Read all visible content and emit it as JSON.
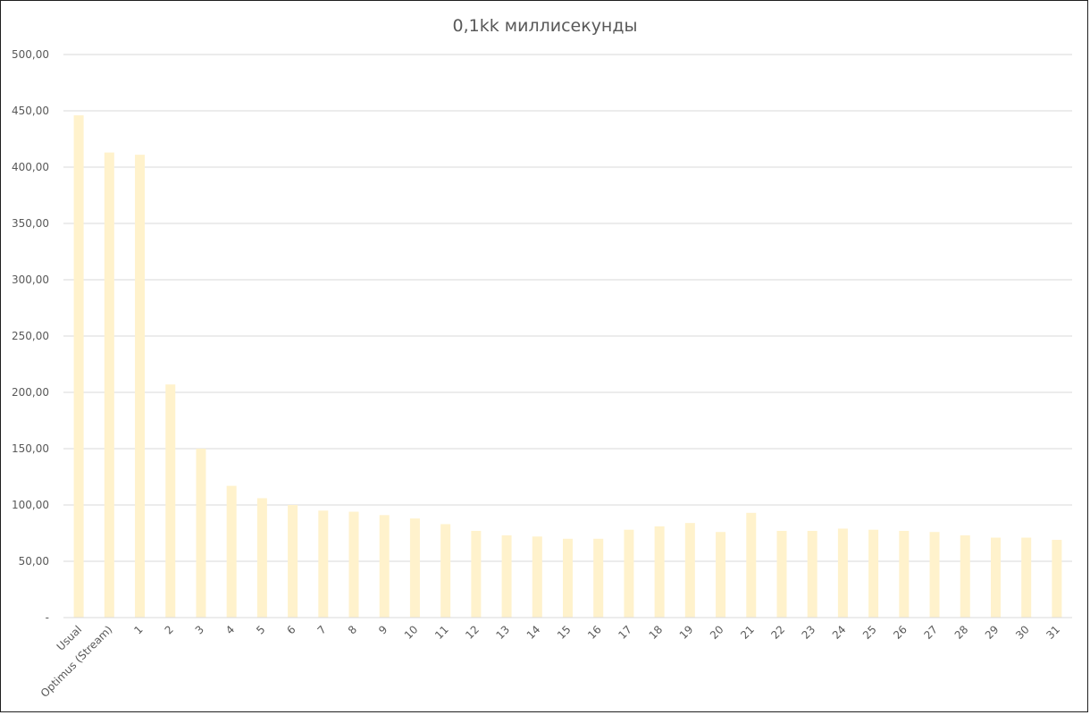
{
  "chart_data": {
    "type": "bar",
    "title": "0,1kk миллисекунды",
    "xlabel": "",
    "ylabel": "",
    "ylim": [
      0,
      500
    ],
    "y_ticks": [
      0,
      50,
      100,
      150,
      200,
      250,
      300,
      350,
      400,
      450,
      500
    ],
    "y_tick_labels": [
      "-",
      "50,00",
      "100,00",
      "150,00",
      "200,00",
      "250,00",
      "300,00",
      "350,00",
      "400,00",
      "450,00",
      "500,00"
    ],
    "grid": true,
    "legend": "none",
    "bar_color": "#fff2cc",
    "categories": [
      "Usual",
      "Optimus (Stream)",
      "1",
      "2",
      "3",
      "4",
      "5",
      "6",
      "7",
      "8",
      "9",
      "10",
      "11",
      "12",
      "13",
      "14",
      "15",
      "16",
      "17",
      "18",
      "19",
      "20",
      "21",
      "22",
      "23",
      "24",
      "25",
      "26",
      "27",
      "28",
      "29",
      "30",
      "31"
    ],
    "values": [
      446,
      413,
      411,
      207,
      150,
      117,
      106,
      100,
      95,
      94,
      91,
      88,
      83,
      77,
      73,
      72,
      70,
      70,
      78,
      81,
      84,
      76,
      93,
      77,
      77,
      79,
      78,
      77,
      76,
      73,
      71,
      71,
      69
    ]
  }
}
